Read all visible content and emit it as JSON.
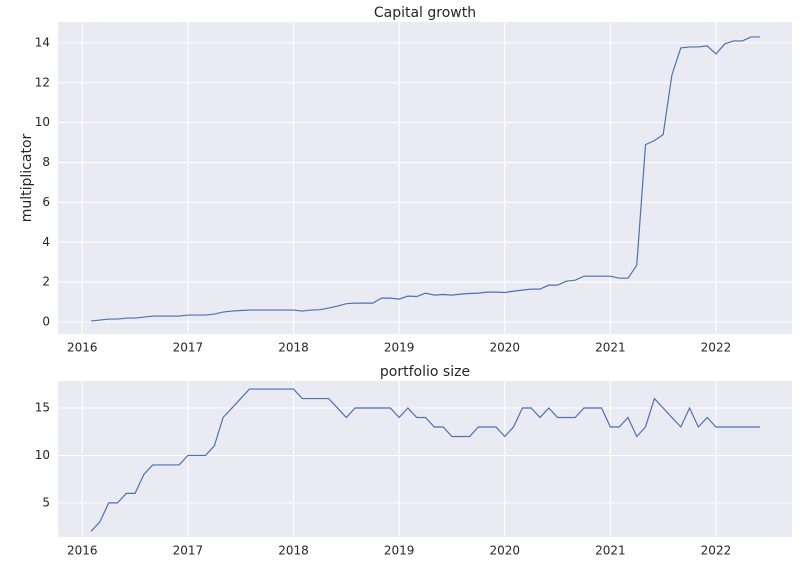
{
  "chart_data": [
    {
      "type": "line",
      "title": "Capital growth",
      "y_label": "multiplicator",
      "color": "#4c72b0",
      "grid": true,
      "x": [
        2016.083,
        2016.167,
        2016.25,
        2016.333,
        2016.417,
        2016.5,
        2016.583,
        2016.667,
        2016.75,
        2016.833,
        2016.917,
        2017.0,
        2017.083,
        2017.167,
        2017.25,
        2017.333,
        2017.417,
        2017.5,
        2017.583,
        2017.667,
        2017.75,
        2017.833,
        2017.917,
        2018.0,
        2018.083,
        2018.167,
        2018.25,
        2018.333,
        2018.417,
        2018.5,
        2018.583,
        2018.667,
        2018.75,
        2018.833,
        2018.917,
        2019.0,
        2019.083,
        2019.167,
        2019.25,
        2019.333,
        2019.417,
        2019.5,
        2019.583,
        2019.667,
        2019.75,
        2019.833,
        2019.917,
        2020.0,
        2020.083,
        2020.167,
        2020.25,
        2020.333,
        2020.417,
        2020.5,
        2020.583,
        2020.667,
        2020.75,
        2020.833,
        2020.917,
        2021.0,
        2021.083,
        2021.167,
        2021.25,
        2021.333,
        2021.417,
        2021.5,
        2021.583,
        2021.667,
        2021.75,
        2021.833,
        2021.917,
        2022.0,
        2022.083,
        2022.167,
        2022.25,
        2022.333,
        2022.417
      ],
      "values": [
        0.05,
        0.1,
        0.15,
        0.15,
        0.2,
        0.2,
        0.25,
        0.3,
        0.3,
        0.3,
        0.3,
        0.35,
        0.35,
        0.35,
        0.4,
        0.5,
        0.55,
        0.58,
        0.6,
        0.6,
        0.6,
        0.6,
        0.6,
        0.6,
        0.55,
        0.6,
        0.62,
        0.7,
        0.8,
        0.92,
        0.95,
        0.95,
        0.95,
        1.2,
        1.2,
        1.15,
        1.3,
        1.28,
        1.45,
        1.35,
        1.38,
        1.35,
        1.4,
        1.43,
        1.45,
        1.5,
        1.5,
        1.48,
        1.55,
        1.6,
        1.65,
        1.65,
        1.85,
        1.85,
        2.05,
        2.1,
        2.3,
        2.3,
        2.3,
        2.3,
        2.2,
        2.2,
        2.85,
        8.9,
        9.1,
        9.4,
        12.4,
        13.75,
        13.8,
        13.8,
        13.85,
        13.45,
        13.95,
        14.1,
        14.1,
        14.3,
        14.3
      ],
      "xlim": [
        2015.77,
        2022.72
      ],
      "ylim": [
        -0.6,
        15.05
      ],
      "xticks": [
        2016,
        2017,
        2018,
        2019,
        2020,
        2021,
        2022
      ],
      "yticks": [
        0,
        2,
        4,
        6,
        8,
        10,
        12,
        14
      ]
    },
    {
      "type": "line",
      "title": "portfolio size",
      "color": "#4c72b0",
      "grid": true,
      "x": [
        2016.083,
        2016.167,
        2016.25,
        2016.333,
        2016.417,
        2016.5,
        2016.583,
        2016.667,
        2016.75,
        2016.833,
        2016.917,
        2017.0,
        2017.083,
        2017.167,
        2017.25,
        2017.333,
        2017.417,
        2017.5,
        2017.583,
        2017.667,
        2017.75,
        2017.833,
        2017.917,
        2018.0,
        2018.083,
        2018.167,
        2018.25,
        2018.333,
        2018.417,
        2018.5,
        2018.583,
        2018.667,
        2018.75,
        2018.833,
        2018.917,
        2019.0,
        2019.083,
        2019.167,
        2019.25,
        2019.333,
        2019.417,
        2019.5,
        2019.583,
        2019.667,
        2019.75,
        2019.833,
        2019.917,
        2020.0,
        2020.083,
        2020.167,
        2020.25,
        2020.333,
        2020.417,
        2020.5,
        2020.583,
        2020.667,
        2020.75,
        2020.833,
        2020.917,
        2021.0,
        2021.083,
        2021.167,
        2021.25,
        2021.333,
        2021.417,
        2021.5,
        2021.583,
        2021.667,
        2021.75,
        2021.833,
        2021.917,
        2022.0,
        2022.083,
        2022.167,
        2022.25,
        2022.333,
        2022.417
      ],
      "values": [
        2,
        3,
        5,
        5,
        6,
        6,
        8,
        9,
        9,
        9,
        9,
        10,
        10,
        10,
        11,
        14,
        15,
        16,
        17,
        17,
        17,
        17,
        17,
        17,
        16,
        16,
        16,
        16,
        15,
        14,
        15,
        15,
        15,
        15,
        15,
        14,
        15,
        14,
        14,
        13,
        13,
        12,
        12,
        12,
        13,
        13,
        13,
        12,
        13,
        15,
        15,
        14,
        15,
        14,
        14,
        14,
        15,
        15,
        15,
        13,
        13,
        14,
        12,
        13,
        16,
        15,
        14,
        13,
        15,
        13,
        14,
        13,
        13,
        13,
        13,
        13,
        13
      ],
      "xlim": [
        2015.77,
        2022.72
      ],
      "ylim": [
        1.4,
        17.85
      ],
      "xticks": [
        2016,
        2017,
        2018,
        2019,
        2020,
        2021,
        2022
      ],
      "yticks": [
        5,
        10,
        15
      ]
    }
  ]
}
